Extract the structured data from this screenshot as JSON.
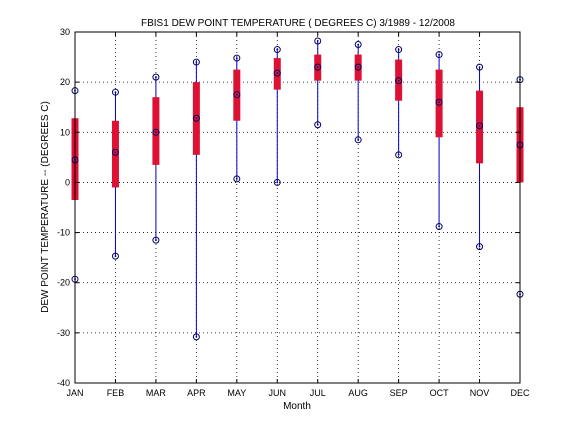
{
  "chart_data": {
    "type": "box",
    "title": "FBIS1  DEW POINT TEMPERATURE ( DEGREES C) 3/1989 - 12/2008",
    "xlabel": "Month",
    "ylabel": "DEW POINT TEMPERATURE -- (DEGREES C)",
    "categories": [
      "JAN",
      "FEB",
      "MAR",
      "APR",
      "MAY",
      "JUN",
      "JUL",
      "AUG",
      "SEP",
      "OCT",
      "NOV",
      "DEC"
    ],
    "ylim": [
      -40,
      30
    ],
    "yticks": [
      "-40",
      "-30",
      "-20",
      "-10",
      "0",
      "10",
      "20",
      "30"
    ],
    "grid": true,
    "max": [
      18.3,
      18.0,
      21.0,
      24.0,
      24.8,
      26.5,
      28.2,
      27.5,
      26.5,
      25.5,
      23.0,
      20.5
    ],
    "q3": [
      12.8,
      12.3,
      17.0,
      20.0,
      22.5,
      24.8,
      25.5,
      25.5,
      24.5,
      22.5,
      18.3,
      15.0
    ],
    "median": [
      4.5,
      6.0,
      10.0,
      12.8,
      17.5,
      21.8,
      23.0,
      23.0,
      20.3,
      16.0,
      11.3,
      7.5
    ],
    "q1": [
      -3.5,
      -1.0,
      3.5,
      5.5,
      12.3,
      18.5,
      20.3,
      20.3,
      16.3,
      9.0,
      3.8,
      0.0
    ],
    "min": [
      -19.3,
      -14.7,
      -11.5,
      -30.8,
      0.7,
      0.0,
      11.5,
      8.5,
      5.5,
      -8.8,
      -12.8,
      -22.3
    ],
    "colors": {
      "whisker": "#0000cc",
      "box": "#dd1133",
      "marker": "#000066",
      "grid": "#000000"
    }
  }
}
